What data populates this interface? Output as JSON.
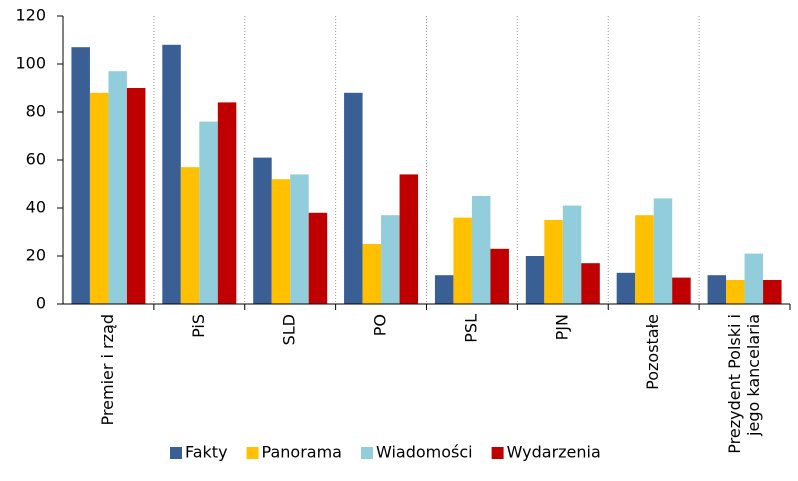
{
  "chart_data": {
    "type": "bar",
    "categories": [
      "Premier i rząd",
      "PiS",
      "SLD",
      "PO",
      "PSL",
      "PJN",
      "Pozostałe",
      "Prezydent Polski i\njego kancelaria"
    ],
    "series": [
      {
        "name": "Fakty",
        "color": "#3a5f94",
        "values": [
          107,
          108,
          61,
          88,
          12,
          20,
          13,
          12
        ]
      },
      {
        "name": "Panorama",
        "color": "#ffc000",
        "values": [
          88,
          57,
          52,
          25,
          36,
          35,
          37,
          10
        ]
      },
      {
        "name": "Wiadomości",
        "color": "#92cddc",
        "values": [
          97,
          76,
          54,
          37,
          45,
          41,
          44,
          21
        ]
      },
      {
        "name": "Wydarzenia",
        "color": "#c00000",
        "values": [
          90,
          84,
          38,
          54,
          23,
          17,
          11,
          10
        ]
      }
    ],
    "ylim": [
      0,
      120
    ],
    "yticks": [
      0,
      20,
      40,
      60,
      80,
      100,
      120
    ],
    "legend": "bottom"
  }
}
